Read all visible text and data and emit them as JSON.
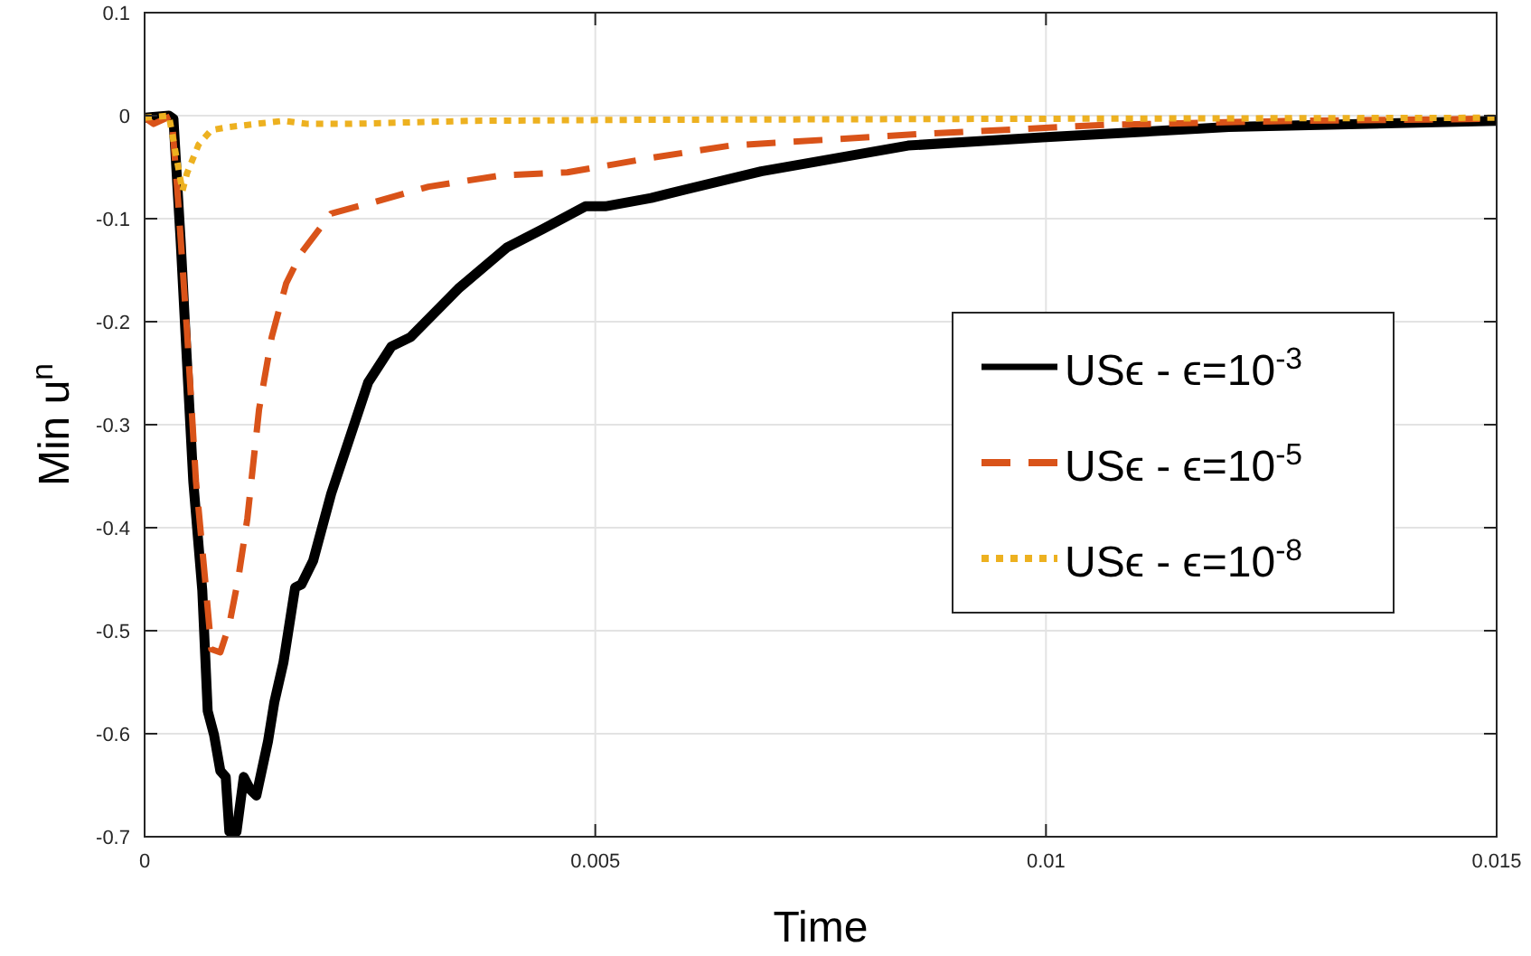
{
  "chart_data": {
    "type": "line",
    "xlabel": "Time",
    "ylabel": "Min u$^{n}$",
    "xlim": [
      0,
      0.015
    ],
    "xticks": [
      0,
      0.005,
      0.01,
      0.015
    ],
    "ylim": [
      -0.7,
      0.1
    ],
    "yticks": [
      -0.7,
      -0.6,
      -0.5,
      -0.4,
      -0.3,
      -0.2,
      -0.1,
      0,
      0.1
    ],
    "grid": true,
    "legend": "right",
    "series": [
      {
        "name": "USϵ - ϵ=10$^{-3}$",
        "color": "#000000",
        "line_style": "solid",
        "x": [
          0,
          0.00027,
          0.00032,
          0.0004,
          0.00047,
          0.00054,
          0.00064,
          0.0007,
          0.00077,
          0.00084,
          0.0009,
          0.00094,
          0.00102,
          0.0011,
          0.00117,
          0.00124,
          0.00137,
          0.00144,
          0.00154,
          0.00167,
          0.00174,
          0.00187,
          0.00207,
          0.00248,
          0.00274,
          0.00295,
          0.00348,
          0.00402,
          0.00442,
          0.00489,
          0.00511,
          0.00562,
          0.0058,
          0.00684,
          0.00847,
          0.00996,
          0.01203,
          0.015
        ],
        "values": [
          -0.002,
          0,
          -0.003,
          -0.122,
          -0.239,
          -0.355,
          -0.461,
          -0.578,
          -0.601,
          -0.636,
          -0.642,
          -0.695,
          -0.695,
          -0.642,
          -0.654,
          -0.66,
          -0.607,
          -0.569,
          -0.531,
          -0.458,
          -0.455,
          -0.432,
          -0.367,
          -0.259,
          -0.224,
          -0.215,
          -0.168,
          -0.128,
          -0.11,
          -0.088,
          -0.088,
          -0.08,
          -0.076,
          -0.054,
          -0.029,
          -0.021,
          -0.011,
          -0.005
        ]
      },
      {
        "name": "USϵ - ϵ=10$^{-5}$",
        "color": "#d95319",
        "line_style": "dashed",
        "x": [
          0,
          0.0001,
          0.0003,
          0.00037,
          0.00047,
          0.00057,
          0.00067,
          0.00074,
          0.00084,
          0.00094,
          0.00104,
          0.00114,
          0.00127,
          0.00141,
          0.00157,
          0.00174,
          0.00207,
          0.00254,
          0.00315,
          0.00395,
          0.00469,
          0.00562,
          0.0065,
          0.00857,
          0.01065,
          0.01273,
          0.015
        ],
        "values": [
          -0.002,
          -0.008,
          0,
          -0.081,
          -0.209,
          -0.355,
          -0.449,
          -0.518,
          -0.521,
          -0.494,
          -0.449,
          -0.391,
          -0.285,
          -0.215,
          -0.163,
          -0.133,
          -0.095,
          -0.084,
          -0.069,
          -0.058,
          -0.055,
          -0.041,
          -0.029,
          -0.018,
          -0.009,
          -0.005,
          -0.003
        ]
      },
      {
        "name": "USϵ - ϵ=10$^{-8}$",
        "color": "#edb120",
        "line_style": "dotted",
        "x": [
          0,
          0.00027,
          0.00042,
          0.00047,
          0.0006,
          0.00074,
          0.00094,
          0.00154,
          0.00181,
          0.00228,
          0.00361,
          0.0055,
          0.01,
          0.015
        ],
        "values": [
          -0.002,
          0,
          -0.073,
          -0.056,
          -0.028,
          -0.014,
          -0.011,
          -0.005,
          -0.008,
          -0.008,
          -0.005,
          -0.004,
          -0.003,
          -0.002
        ]
      }
    ]
  }
}
